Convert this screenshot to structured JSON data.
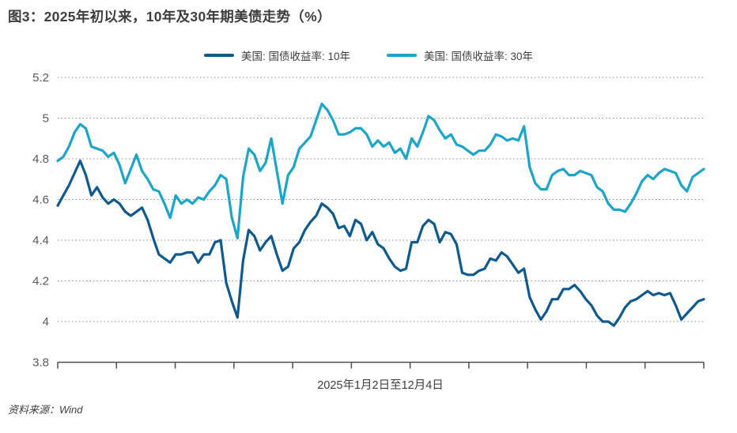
{
  "figure": {
    "title": "图3：2025年初以来，10年及30年期美债走势（%）",
    "xaxis_label": "2025年1月2日至12月4日",
    "source": "资料来源：Wind"
  },
  "chart_data": {
    "type": "line",
    "title": "图3：2025年初以来，10年及30年期美债走势（%）",
    "xlabel": "2025年1月2日至12月4日",
    "ylabel": "",
    "x_range_description": "2025-01-02 至 2025-12-04（日度，均匀采样116个点）",
    "ylim": [
      3.8,
      5.2
    ],
    "yticks": [
      {
        "value": 5.2,
        "label": "5.2"
      },
      {
        "value": 5.0,
        "label": "5"
      },
      {
        "value": 4.8,
        "label": "4.8"
      },
      {
        "value": 4.6,
        "label": "4.6"
      },
      {
        "value": 4.4,
        "label": "4.4"
      },
      {
        "value": 4.2,
        "label": "4.2"
      },
      {
        "value": 4.0,
        "label": "4"
      },
      {
        "value": 3.8,
        "label": "3.8"
      }
    ],
    "x_tick_count": 12,
    "grid": "dotted-horizontal",
    "legend_position": "top-center",
    "colors": {
      "grid": "#8c8c8c",
      "axis": "#4d4d4d",
      "tick_text": "#595959"
    },
    "series": [
      {
        "name": "美国: 国债收益率: 10年",
        "color": "#0e5a8e",
        "values": [
          4.57,
          4.62,
          4.67,
          4.73,
          4.79,
          4.72,
          4.62,
          4.66,
          4.61,
          4.58,
          4.6,
          4.58,
          4.54,
          4.52,
          4.54,
          4.56,
          4.5,
          4.41,
          4.33,
          4.31,
          4.29,
          4.33,
          4.33,
          4.34,
          4.34,
          4.29,
          4.33,
          4.33,
          4.39,
          4.4,
          4.19,
          4.1,
          4.02,
          4.3,
          4.45,
          4.42,
          4.35,
          4.39,
          4.42,
          4.33,
          4.25,
          4.27,
          4.36,
          4.39,
          4.45,
          4.49,
          4.52,
          4.58,
          4.56,
          4.53,
          4.46,
          4.47,
          4.42,
          4.5,
          4.48,
          4.4,
          4.44,
          4.38,
          4.36,
          4.31,
          4.27,
          4.25,
          4.26,
          4.39,
          4.39,
          4.47,
          4.5,
          4.48,
          4.39,
          4.44,
          4.43,
          4.38,
          4.24,
          4.23,
          4.23,
          4.25,
          4.26,
          4.31,
          4.3,
          4.34,
          4.32,
          4.28,
          4.24,
          4.26,
          4.12,
          4.06,
          4.01,
          4.05,
          4.11,
          4.11,
          4.16,
          4.16,
          4.18,
          4.15,
          4.11,
          4.08,
          4.03,
          4.0,
          4.0,
          3.98,
          4.02,
          4.07,
          4.1,
          4.11,
          4.13,
          4.15,
          4.13,
          4.14,
          4.13,
          4.14,
          4.08,
          4.01,
          4.04,
          4.07,
          4.1,
          4.11
        ]
      },
      {
        "name": "美国: 国债收益率: 30年",
        "color": "#1ba5c9",
        "values": [
          4.79,
          4.81,
          4.86,
          4.93,
          4.97,
          4.95,
          4.86,
          4.85,
          4.84,
          4.81,
          4.83,
          4.77,
          4.68,
          4.75,
          4.82,
          4.74,
          4.7,
          4.65,
          4.64,
          4.58,
          4.51,
          4.62,
          4.58,
          4.6,
          4.58,
          4.61,
          4.6,
          4.64,
          4.67,
          4.72,
          4.7,
          4.51,
          4.41,
          4.71,
          4.85,
          4.82,
          4.74,
          4.78,
          4.9,
          4.74,
          4.58,
          4.72,
          4.76,
          4.85,
          4.88,
          4.91,
          4.99,
          5.07,
          5.04,
          4.99,
          4.92,
          4.92,
          4.93,
          4.95,
          4.95,
          4.92,
          4.86,
          4.89,
          4.86,
          4.88,
          4.83,
          4.85,
          4.8,
          4.9,
          4.86,
          4.93,
          5.01,
          4.99,
          4.94,
          4.9,
          4.92,
          4.87,
          4.86,
          4.84,
          4.82,
          4.84,
          4.84,
          4.87,
          4.92,
          4.91,
          4.89,
          4.9,
          4.89,
          4.96,
          4.76,
          4.68,
          4.65,
          4.65,
          4.72,
          4.74,
          4.75,
          4.72,
          4.72,
          4.74,
          4.73,
          4.72,
          4.66,
          4.64,
          4.58,
          4.55,
          4.55,
          4.54,
          4.58,
          4.63,
          4.69,
          4.72,
          4.7,
          4.73,
          4.75,
          4.74,
          4.73,
          4.67,
          4.64,
          4.71,
          4.73,
          4.75
        ]
      }
    ]
  }
}
